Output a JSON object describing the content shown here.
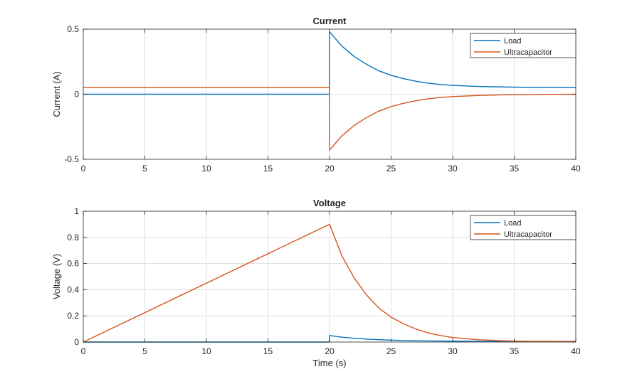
{
  "chart_data": [
    {
      "type": "line",
      "title": "Current",
      "xlabel": "",
      "ylabel": "Current (A)",
      "xlim": [
        0,
        40
      ],
      "ylim": [
        -0.5,
        0.5
      ],
      "xticks": [
        0,
        5,
        10,
        15,
        20,
        25,
        30,
        35,
        40
      ],
      "yticks": [
        -0.5,
        0,
        0.5
      ],
      "ytick_labels": [
        "-0.5",
        "0",
        "0.5"
      ],
      "grid": true,
      "legend_position": "top-right",
      "series": [
        {
          "name": "Load",
          "color": "#0072BD",
          "x": [
            0,
            19.99,
            20,
            21,
            22,
            23,
            24,
            25,
            26,
            27,
            28,
            29,
            30,
            32,
            34,
            36,
            38,
            40
          ],
          "y": [
            0,
            0,
            0.48,
            0.37,
            0.29,
            0.23,
            0.18,
            0.145,
            0.12,
            0.1,
            0.085,
            0.075,
            0.068,
            0.06,
            0.056,
            0.053,
            0.052,
            0.05
          ]
        },
        {
          "name": "Ultracapacitor",
          "color": "#D95319",
          "x": [
            0,
            19.99,
            20,
            21,
            22,
            23,
            24,
            25,
            26,
            27,
            28,
            29,
            30,
            32,
            34,
            36,
            38,
            40
          ],
          "y": [
            0.05,
            0.05,
            -0.43,
            -0.32,
            -0.24,
            -0.18,
            -0.13,
            -0.095,
            -0.07,
            -0.05,
            -0.035,
            -0.025,
            -0.018,
            -0.01,
            -0.005,
            -0.003,
            -0.001,
            0
          ]
        }
      ]
    },
    {
      "type": "line",
      "title": "Voltage",
      "xlabel": "Time (s)",
      "ylabel": "Voltage (V)",
      "xlim": [
        0,
        40
      ],
      "ylim": [
        0,
        1
      ],
      "xticks": [
        0,
        5,
        10,
        15,
        20,
        25,
        30,
        35,
        40
      ],
      "yticks": [
        0,
        0.2,
        0.4,
        0.6,
        0.8,
        1
      ],
      "ytick_labels": [
        "0",
        "0.2",
        "0.4",
        "0.6",
        "0.8",
        "1"
      ],
      "grid": true,
      "legend_position": "top-right",
      "series": [
        {
          "name": "Load",
          "color": "#0072BD",
          "x": [
            0,
            19.99,
            20,
            21,
            22,
            23,
            24,
            25,
            26,
            27,
            28,
            30,
            32,
            34,
            36,
            38,
            40
          ],
          "y": [
            0,
            0,
            0.05,
            0.037,
            0.029,
            0.023,
            0.018,
            0.0145,
            0.012,
            0.01,
            0.0085,
            0.0068,
            0.006,
            0.0056,
            0.0053,
            0.0052,
            0.005
          ]
        },
        {
          "name": "Ultracapacitor",
          "color": "#D95319",
          "x": [
            0,
            20,
            21,
            22,
            23,
            24,
            25,
            26,
            27,
            28,
            29,
            30,
            32,
            34,
            36,
            38,
            40
          ],
          "y": [
            0,
            0.9,
            0.66,
            0.49,
            0.36,
            0.26,
            0.19,
            0.14,
            0.1,
            0.07,
            0.05,
            0.035,
            0.018,
            0.01,
            0.006,
            0.004,
            0.003
          ]
        }
      ]
    }
  ]
}
